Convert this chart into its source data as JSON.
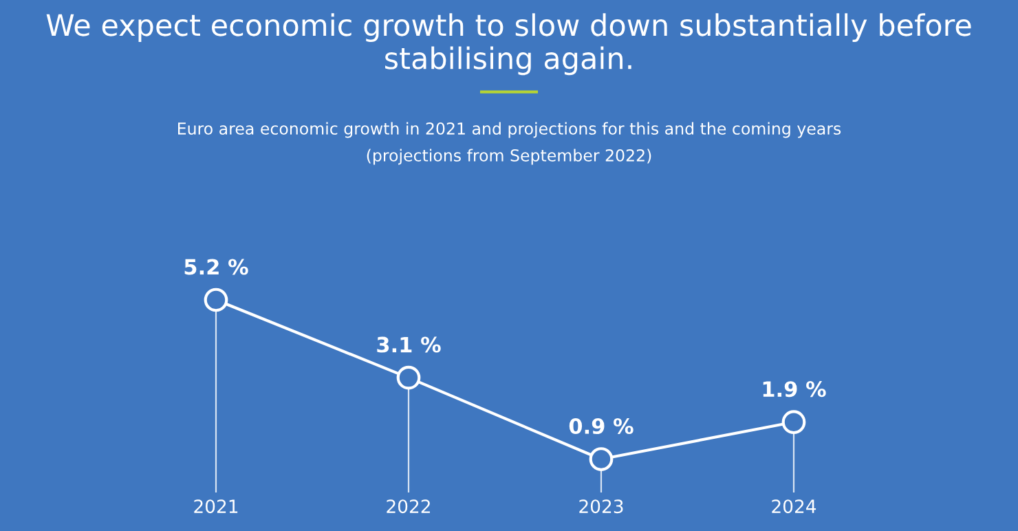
{
  "chart_data": {
    "type": "line",
    "title": "We expect economic growth to slow down substantially before stabilising again.",
    "subtitle": "Euro area economic growth in 2021 and projections for this and the coming years\n(projections from September 2022)",
    "categories": [
      "2021",
      "2022",
      "2023",
      "2024"
    ],
    "series": [
      {
        "color": "#ffffff",
        "values": [
          5.2,
          3.1,
          0.9,
          1.9
        ],
        "value_labels": [
          "5.2 %",
          "3.1 %",
          "0.9 %",
          "1.9 %"
        ]
      }
    ],
    "tick_labels": "x",
    "marker": "circle",
    "line_style": "solid",
    "grid": "x",
    "legend": false
  }
}
